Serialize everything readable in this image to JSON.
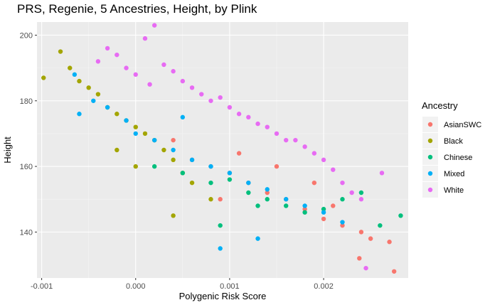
{
  "chart_data": {
    "type": "scatter",
    "title": "PRS, Regenie, 5 Ancestries, Height, by Plink",
    "xlabel": "Polygenic Risk Score",
    "ylabel": "Height",
    "xlim": [
      -0.00105,
      0.0029
    ],
    "ylim": [
      126,
      204
    ],
    "x_ticks": [
      -0.001,
      0.0,
      0.001,
      0.002
    ],
    "x_tick_labels": [
      "-0.001",
      "0.000",
      "0.001",
      "0.002"
    ],
    "y_ticks": [
      140,
      160,
      180,
      200
    ],
    "y_tick_labels": [
      "140",
      "160",
      "180",
      "200"
    ],
    "grid": true,
    "legend": {
      "title": "Ancestry",
      "placement": "right"
    },
    "series": [
      {
        "name": "AsianSWC",
        "color": "#F8766D",
        "x": [
          0.0004,
          0.0006,
          0.0008,
          0.001,
          0.0012,
          0.0014,
          0.0016,
          0.0018,
          0.002,
          0.0022,
          0.0024,
          0.0025,
          0.0027,
          0.00275,
          0.00238,
          0.0015,
          0.0011,
          0.0009,
          0.0019,
          0.0021
        ],
        "y": [
          168,
          162,
          160,
          158,
          155,
          152,
          150,
          147,
          144,
          142,
          140,
          138,
          137,
          128,
          132,
          160,
          164,
          150,
          155,
          148
        ]
      },
      {
        "name": "Black",
        "color": "#A3A500",
        "x": [
          -0.00098,
          -0.0008,
          -0.0007,
          -0.0006,
          -0.0005,
          -0.0004,
          -0.0003,
          -0.0002,
          -0.0001,
          0.0,
          0.0001,
          0.0002,
          0.0003,
          0.0004,
          0.0005,
          0.0006,
          0.0008,
          0.0004,
          -0.0002,
          0.0
        ],
        "y": [
          187,
          195,
          190,
          186,
          184,
          182,
          178,
          176,
          174,
          172,
          170,
          168,
          165,
          162,
          158,
          155,
          150,
          145,
          165,
          160
        ]
      },
      {
        "name": "Chinese",
        "color": "#00BF7D",
        "x": [
          0.0002,
          0.0005,
          0.0008,
          0.001,
          0.0012,
          0.0014,
          0.0016,
          0.0018,
          0.002,
          0.0022,
          0.0024,
          0.0026,
          0.00282,
          0.0009,
          0.0013
        ],
        "y": [
          160,
          158,
          155,
          156,
          152,
          150,
          148,
          146,
          147,
          150,
          152,
          142,
          145,
          142,
          148
        ]
      },
      {
        "name": "Mixed",
        "color": "#00B0F6",
        "x": [
          -0.00065,
          -0.0006,
          -0.00045,
          -0.0003,
          -0.0001,
          0.0,
          0.0002,
          0.0004,
          0.0006,
          0.0008,
          0.001,
          0.0012,
          0.0014,
          0.0016,
          0.0018,
          0.002,
          0.0022,
          0.0013,
          0.0009,
          0.0005
        ],
        "y": [
          188,
          176,
          180,
          178,
          174,
          170,
          168,
          165,
          162,
          160,
          158,
          155,
          153,
          150,
          148,
          146,
          143,
          138,
          135,
          175
        ]
      },
      {
        "name": "White",
        "color": "#E76BF3",
        "x": [
          -0.0004,
          -0.0003,
          -0.0002,
          -0.0001,
          0.0,
          0.0001,
          0.0002,
          0.0003,
          0.0004,
          0.0005,
          0.0006,
          0.0007,
          0.0008,
          0.0009,
          0.001,
          0.0011,
          0.0012,
          0.0013,
          0.0014,
          0.0015,
          0.0016,
          0.0017,
          0.0018,
          0.0019,
          0.002,
          0.0021,
          0.0022,
          0.0023,
          0.0024,
          0.00262,
          0.00245,
          0.00015
        ],
        "y": [
          192,
          196,
          194,
          190,
          188,
          199,
          203,
          191,
          189,
          186,
          184,
          182,
          180,
          181,
          178,
          176,
          175,
          173,
          172,
          170,
          168,
          168,
          166,
          164,
          162,
          159,
          155,
          152,
          150,
          158,
          129,
          185
        ]
      }
    ]
  }
}
